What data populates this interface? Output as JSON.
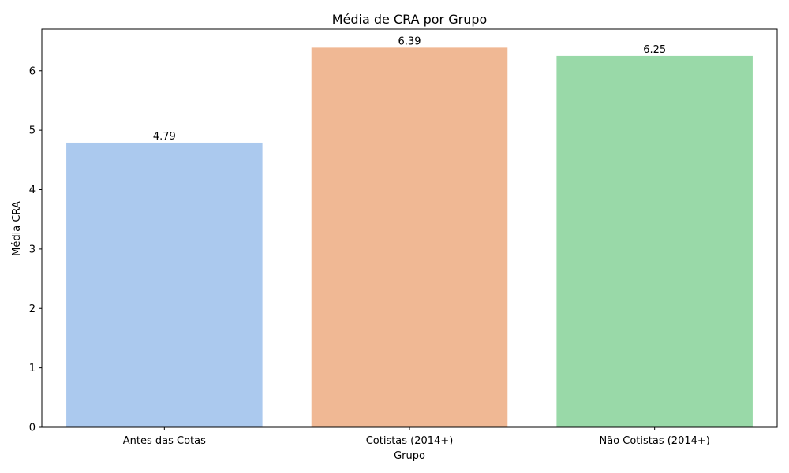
{
  "chart_data": {
    "type": "bar",
    "title": "Média de CRA por Grupo",
    "xlabel": "Grupo",
    "ylabel": "Média CRA",
    "categories": [
      "Antes das Cotas",
      "Cotistas (2014+)",
      "Não Cotistas (2014+)"
    ],
    "values": [
      4.79,
      6.39,
      6.25
    ],
    "data_labels": [
      "4.79",
      "6.39",
      "6.25"
    ],
    "colors": [
      "#abc9ee",
      "#f0b894",
      "#99d9a8"
    ],
    "ylim": [
      0,
      6.7
    ],
    "yticks": [
      0,
      1,
      2,
      3,
      4,
      5,
      6
    ],
    "grid": false,
    "legend": "none"
  }
}
